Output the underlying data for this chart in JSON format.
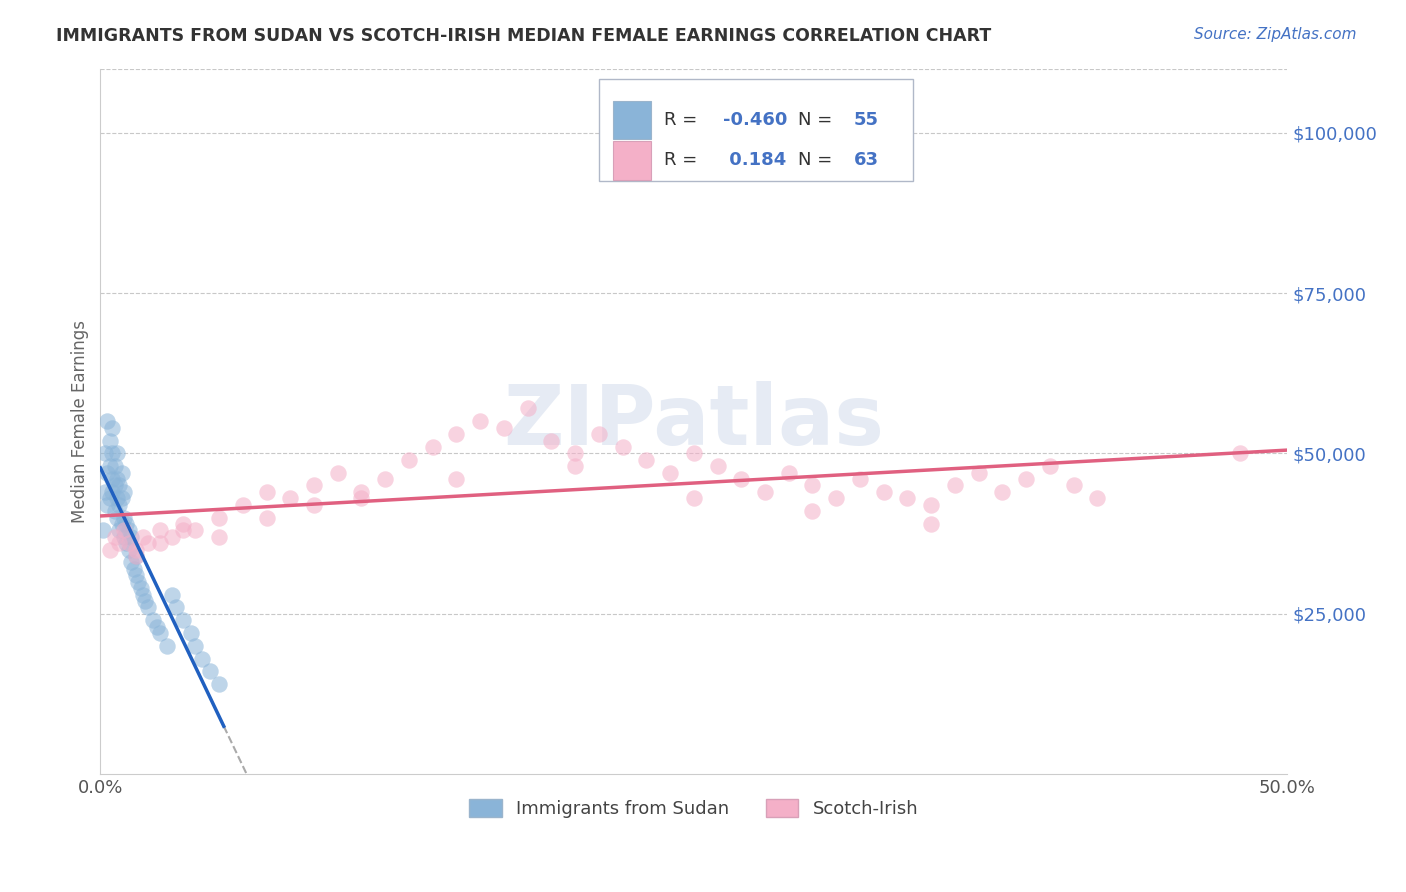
{
  "title": "IMMIGRANTS FROM SUDAN VS SCOTCH-IRISH MEDIAN FEMALE EARNINGS CORRELATION CHART",
  "source": "Source: ZipAtlas.com",
  "ylabel": "Median Female Earnings",
  "xlim": [
    0.0,
    0.5
  ],
  "ylim": [
    0,
    110000
  ],
  "yticks": [
    0,
    25000,
    50000,
    75000,
    100000
  ],
  "ytick_labels": [
    "",
    "$25,000",
    "$50,000",
    "$75,000",
    "$100,000"
  ],
  "legend_labels": [
    "Immigrants from Sudan",
    "Scotch-Irish"
  ],
  "R_sudan": -0.46,
  "N_sudan": 55,
  "R_scotch": 0.184,
  "N_scotch": 63,
  "color_sudan": "#8ab4d8",
  "color_scotch": "#f4b0c8",
  "line_color_sudan": "#2060c0",
  "line_color_scotch": "#e06080",
  "background_color": "#ffffff",
  "grid_color": "#c8c8c8",
  "title_color": "#333333",
  "axis_label_color": "#4472c4",
  "watermark": "ZIPatlas",
  "legend_text_color": "#333333",
  "legend_value_color": "#4472c4",
  "source_color": "#4472c4",
  "sudan_x": [
    0.001,
    0.002,
    0.002,
    0.003,
    0.003,
    0.003,
    0.004,
    0.004,
    0.004,
    0.005,
    0.005,
    0.005,
    0.005,
    0.006,
    0.006,
    0.006,
    0.007,
    0.007,
    0.007,
    0.007,
    0.008,
    0.008,
    0.008,
    0.009,
    0.009,
    0.009,
    0.01,
    0.01,
    0.01,
    0.011,
    0.011,
    0.012,
    0.012,
    0.013,
    0.013,
    0.014,
    0.015,
    0.015,
    0.016,
    0.017,
    0.018,
    0.019,
    0.02,
    0.022,
    0.024,
    0.025,
    0.028,
    0.03,
    0.032,
    0.035,
    0.038,
    0.04,
    0.043,
    0.046,
    0.05
  ],
  "sudan_y": [
    38000,
    44000,
    50000,
    42000,
    47000,
    55000,
    43000,
    48000,
    52000,
    44000,
    46000,
    50000,
    54000,
    41000,
    45000,
    48000,
    40000,
    43000,
    46000,
    50000,
    38000,
    42000,
    45000,
    39000,
    43000,
    47000,
    37000,
    40000,
    44000,
    36000,
    39000,
    35000,
    38000,
    33000,
    37000,
    32000,
    31000,
    34000,
    30000,
    29000,
    28000,
    27000,
    26000,
    24000,
    23000,
    22000,
    20000,
    28000,
    26000,
    24000,
    22000,
    20000,
    18000,
    16000,
    14000
  ],
  "scotch_x": [
    0.004,
    0.006,
    0.008,
    0.01,
    0.012,
    0.015,
    0.018,
    0.02,
    0.025,
    0.03,
    0.035,
    0.04,
    0.05,
    0.06,
    0.07,
    0.08,
    0.09,
    0.1,
    0.11,
    0.12,
    0.13,
    0.14,
    0.15,
    0.16,
    0.17,
    0.18,
    0.19,
    0.2,
    0.21,
    0.22,
    0.23,
    0.24,
    0.25,
    0.26,
    0.27,
    0.28,
    0.29,
    0.3,
    0.31,
    0.32,
    0.33,
    0.34,
    0.35,
    0.36,
    0.37,
    0.38,
    0.39,
    0.4,
    0.41,
    0.42,
    0.015,
    0.025,
    0.035,
    0.05,
    0.07,
    0.09,
    0.11,
    0.15,
    0.2,
    0.25,
    0.3,
    0.35,
    0.48
  ],
  "scotch_y": [
    35000,
    37000,
    36000,
    38000,
    36000,
    35000,
    37000,
    36000,
    38000,
    37000,
    39000,
    38000,
    40000,
    42000,
    44000,
    43000,
    45000,
    47000,
    43000,
    46000,
    49000,
    51000,
    53000,
    55000,
    54000,
    57000,
    52000,
    50000,
    53000,
    51000,
    49000,
    47000,
    50000,
    48000,
    46000,
    44000,
    47000,
    45000,
    43000,
    46000,
    44000,
    43000,
    42000,
    45000,
    47000,
    44000,
    46000,
    48000,
    45000,
    43000,
    34000,
    36000,
    38000,
    37000,
    40000,
    42000,
    44000,
    46000,
    48000,
    43000,
    41000,
    39000,
    50000
  ]
}
